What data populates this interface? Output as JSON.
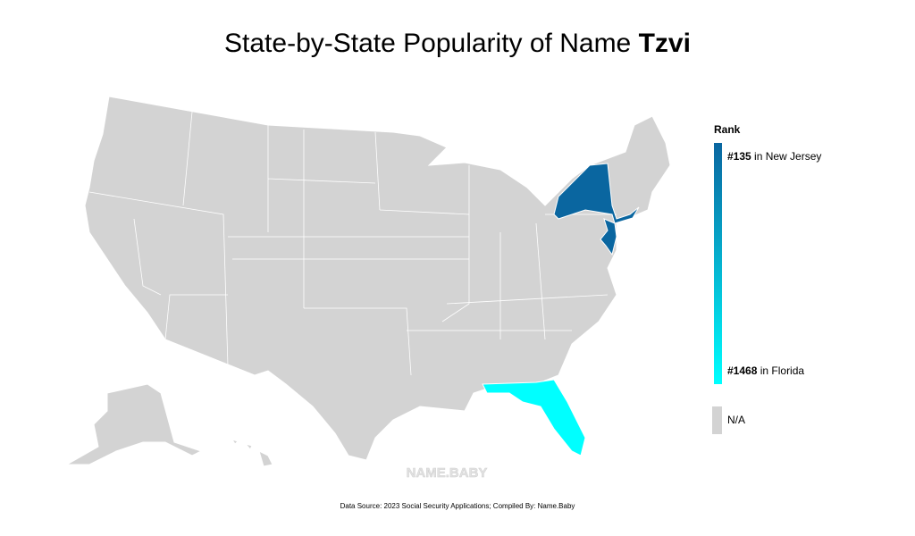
{
  "header": {
    "title": "State-by-State Popularity of Name",
    "name": "Tzvi"
  },
  "legend": {
    "title": "Rank",
    "top": {
      "rank": "#135",
      "text": "in New Jersey",
      "color": "#0a66a0"
    },
    "bottom": {
      "rank": "#1468",
      "text": "in Florida",
      "color": "#00ffff"
    },
    "na": {
      "label": "N/A",
      "color": "#d3d3d3"
    }
  },
  "watermark": "NAME.BABY",
  "footer": "Data Source: 2023 Social Security Applications; Compiled By: Name.Baby"
}
